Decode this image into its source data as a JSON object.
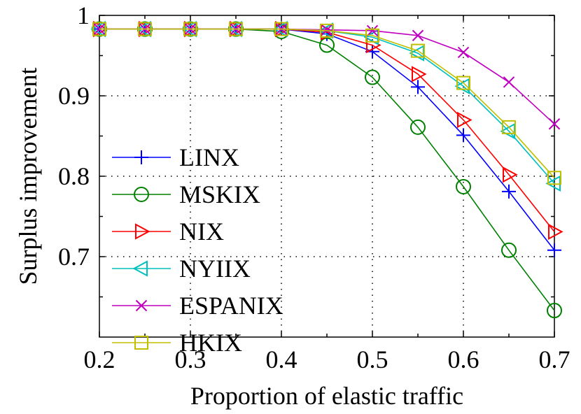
{
  "chart_data": {
    "type": "line",
    "title": "",
    "xlabel": "Proportion of elastic traffic",
    "ylabel": "Surplus improvement",
    "xlim": [
      0.2,
      0.7
    ],
    "ylim": [
      0.6,
      1.0
    ],
    "xticks": [
      {
        "value": 0.2,
        "label": "0.2"
      },
      {
        "value": 0.3,
        "label": "0.3"
      },
      {
        "value": 0.4,
        "label": "0.4"
      },
      {
        "value": 0.5,
        "label": "0.5"
      },
      {
        "value": 0.6,
        "label": "0.6"
      },
      {
        "value": 0.7,
        "label": "0.7"
      }
    ],
    "yticks": [
      {
        "value": 0.7,
        "label": "0.7"
      },
      {
        "value": 0.8,
        "label": "0.8"
      },
      {
        "value": 0.9,
        "label": "0.9"
      },
      {
        "value": 1.0,
        "label": "1"
      }
    ],
    "grid": true,
    "grid_style": "dotted",
    "legend_position": "bottom-left",
    "x": [
      0.2,
      0.25,
      0.3,
      0.35,
      0.4,
      0.45,
      0.5,
      0.55,
      0.6,
      0.65,
      0.7
    ],
    "series": [
      {
        "name": "LINX",
        "color": "#0000ff",
        "marker": "plus",
        "values": [
          0.983,
          0.983,
          0.983,
          0.983,
          0.983,
          0.977,
          0.955,
          0.911,
          0.851,
          0.781,
          0.708
        ]
      },
      {
        "name": "MSKIX",
        "color": "#008000",
        "marker": "circle",
        "values": [
          0.983,
          0.983,
          0.983,
          0.983,
          0.98,
          0.963,
          0.923,
          0.861,
          0.787,
          0.708,
          0.633
        ]
      },
      {
        "name": "NIX",
        "color": "#ff0000",
        "marker": "triangle-right",
        "values": [
          0.983,
          0.983,
          0.983,
          0.983,
          0.983,
          0.979,
          0.963,
          0.927,
          0.87,
          0.802,
          0.731
        ]
      },
      {
        "name": "NYIIX",
        "color": "#00bfbf",
        "marker": "triangle-left",
        "values": [
          0.983,
          0.983,
          0.983,
          0.983,
          0.983,
          0.981,
          0.973,
          0.953,
          0.912,
          0.856,
          0.791
        ]
      },
      {
        "name": "ESPANIX",
        "color": "#bf00bf",
        "marker": "x",
        "values": [
          0.983,
          0.983,
          0.983,
          0.983,
          0.983,
          0.982,
          0.981,
          0.975,
          0.954,
          0.917,
          0.865
        ]
      },
      {
        "name": "HKIX",
        "color": "#bfbf00",
        "marker": "square",
        "values": [
          0.983,
          0.983,
          0.983,
          0.983,
          0.983,
          0.981,
          0.975,
          0.956,
          0.916,
          0.861,
          0.798
        ]
      }
    ]
  }
}
